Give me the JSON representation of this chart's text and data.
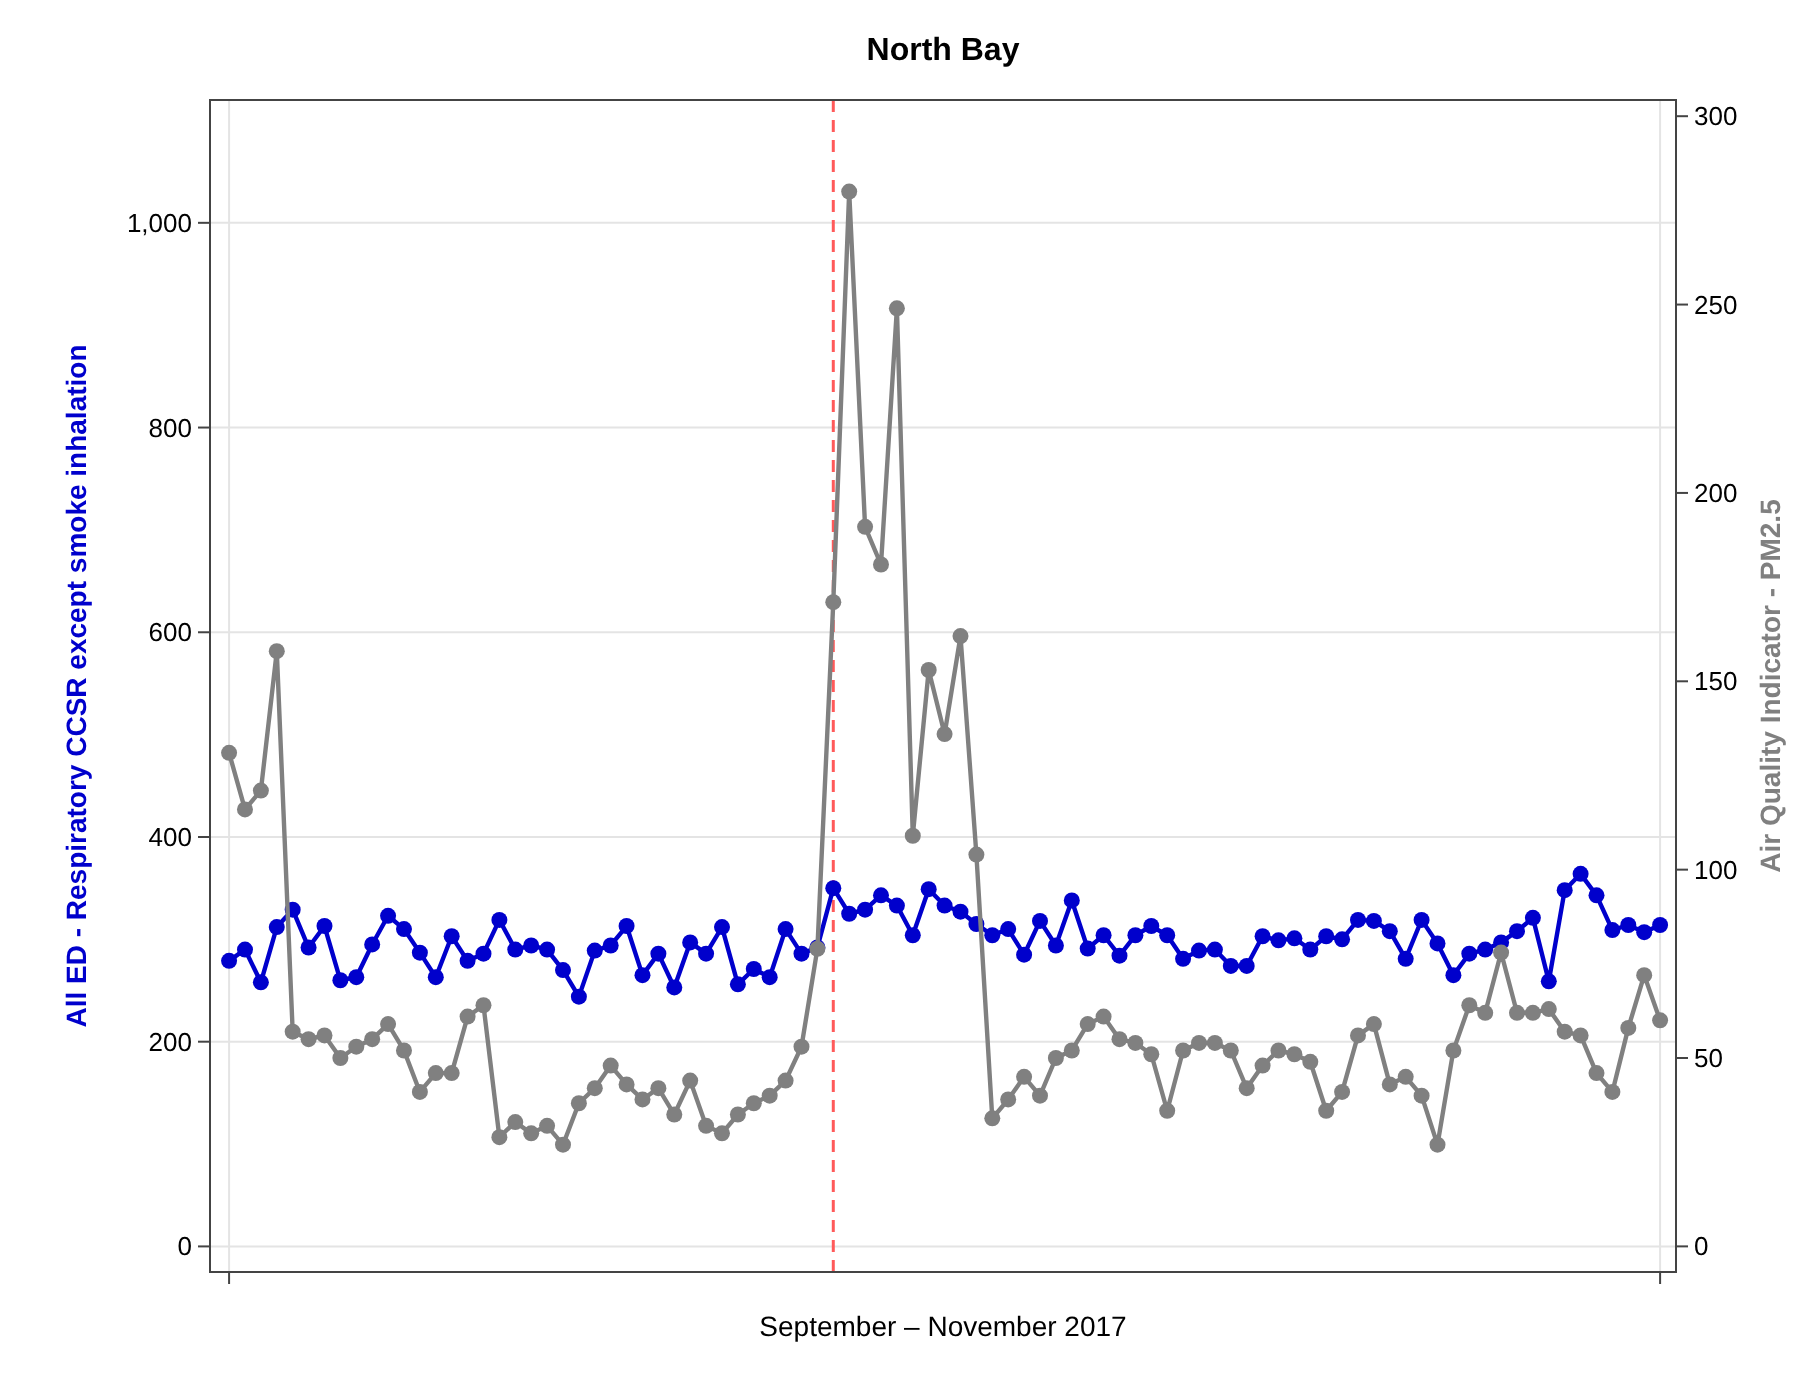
{
  "chart_data": {
    "type": "line",
    "title": "North Bay",
    "xlabel": "September – November 2017",
    "ylabel": "All ED - Respiratory CCSR except smoke inhalation",
    "y2label": "Air Quality Indicator - PM2.5",
    "categories": [
      null,
      null,
      null,
      null,
      null,
      null,
      null,
      null,
      null,
      null,
      null,
      null,
      null,
      null,
      null,
      null,
      null,
      null,
      null,
      null,
      null,
      null,
      null,
      null,
      null,
      null,
      null,
      null,
      null,
      null,
      null,
      null,
      null,
      null,
      null,
      null,
      null,
      null,
      null,
      null,
      null,
      null,
      null,
      null,
      null,
      null,
      null,
      null,
      null,
      null,
      null,
      null,
      null,
      null,
      null,
      null,
      null,
      null,
      null,
      null,
      null,
      null,
      null,
      null,
      null,
      null,
      null,
      null,
      null,
      null,
      null,
      null,
      null,
      null,
      null,
      null,
      null,
      null,
      null,
      null,
      null,
      null,
      null,
      null,
      null,
      null,
      null,
      null,
      null,
      null,
      null
    ],
    "ylim": [
      -25,
      1120
    ],
    "yticks": [
      0,
      200,
      400,
      600,
      800,
      {
        "value": 1000,
        "label": "1,000"
      }
    ],
    "y2lim": [
      -6.8,
      304.3
    ],
    "y2ticks": [
      0,
      50,
      100,
      150,
      200,
      250,
      300
    ],
    "grid": true,
    "marker": "circle",
    "line_style": "solid",
    "series": [
      {
        "color": "#0000cc",
        "values": [
          279,
          290,
          258,
          312,
          329,
          292,
          313,
          260,
          263,
          295,
          323,
          310,
          287,
          263,
          303,
          279,
          286,
          319,
          290,
          294,
          290,
          270,
          244,
          289,
          294,
          313,
          265,
          286,
          253,
          297,
          286,
          312,
          256,
          271,
          263,
          310,
          286,
          292,
          350,
          325,
          329,
          343,
          333,
          304,
          349,
          333,
          327,
          315,
          304,
          310,
          285,
          318,
          294,
          338,
          291,
          304,
          284,
          304,
          313,
          304,
          281,
          289,
          290,
          274,
          274,
          303,
          299,
          301,
          290,
          303,
          300,
          319,
          318,
          308,
          281,
          319,
          296,
          265,
          286,
          290,
          297,
          308,
          321,
          259,
          348,
          364,
          343,
          309,
          314,
          307,
          314
        ]
      },
      {
        "color": "#808080",
        "axis": "y2",
        "values": [
          131,
          116,
          121,
          158,
          57,
          55,
          56,
          50,
          53,
          55,
          59,
          52,
          41,
          46,
          46,
          61,
          64,
          29,
          33,
          30,
          32,
          27,
          38,
          42,
          48,
          43,
          39,
          42,
          35,
          44,
          32,
          30,
          35,
          38,
          40,
          44,
          53,
          79,
          171,
          280,
          191,
          181,
          249,
          109,
          153,
          136,
          162,
          104,
          34,
          39,
          45,
          40,
          50,
          52,
          59,
          61,
          55,
          54,
          51,
          36,
          52,
          54,
          54,
          52,
          42,
          48,
          52,
          51,
          49,
          36,
          41,
          56,
          59,
          43,
          45,
          40,
          27,
          52,
          64,
          62,
          78,
          62,
          62,
          63,
          57,
          56,
          46,
          41,
          58,
          72,
          60
        ]
      }
    ]
  }
}
